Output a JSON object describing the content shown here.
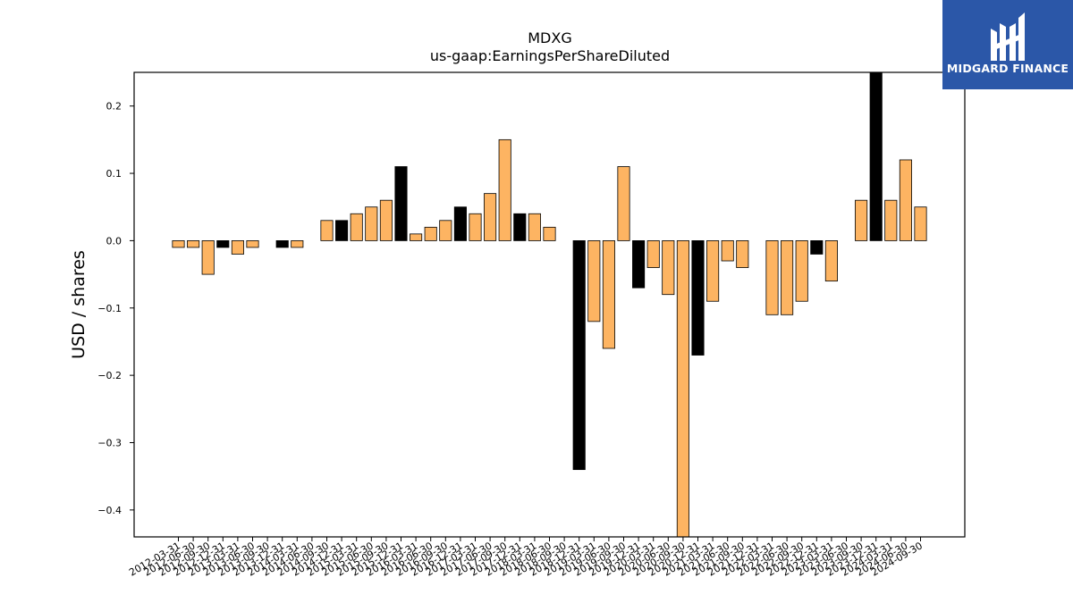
{
  "brand": {
    "name": "MIDGARD FINANCE"
  },
  "chart_data": {
    "type": "bar",
    "title": "MDXG",
    "subtitle": "us-gaap:EarningsPerShareDiluted",
    "xlabel": "",
    "ylabel": "USD / shares",
    "ylim": [
      -0.44,
      0.25
    ],
    "yticks": [
      -0.4,
      -0.3,
      -0.2,
      -0.1,
      0.0,
      0.1,
      0.2
    ],
    "ytick_labels": [
      "−0.4",
      "−0.3",
      "−0.2",
      "−0.1",
      "0.0",
      "0.1",
      "0.2"
    ],
    "grid": false,
    "colors": {
      "quarter": "#fdb462",
      "annual": "#000000",
      "edge": "#000000"
    },
    "categories": [
      "2012-03-31",
      "2012-06-30",
      "2012-09-30",
      "2012-12-31",
      "2013-03-31",
      "2013-06-30",
      "2013-09-30",
      "2013-12-31",
      "2014-03-31",
      "2014-06-30",
      "2014-09-30",
      "2014-12-31",
      "2015-03-31",
      "2015-06-30",
      "2015-09-30",
      "2015-12-31",
      "2016-03-31",
      "2016-06-30",
      "2016-09-30",
      "2016-12-31",
      "2017-03-31",
      "2017-06-30",
      "2017-09-30",
      "2017-12-31",
      "2018-03-31",
      "2018-06-30",
      "2018-09-30",
      "2018-12-31",
      "2019-03-31",
      "2019-06-30",
      "2019-09-30",
      "2019-12-31",
      "2020-03-31",
      "2020-06-30",
      "2020-09-30",
      "2020-12-31",
      "2021-03-31",
      "2021-06-30",
      "2021-09-30",
      "2021-12-31",
      "2022-03-31",
      "2022-06-30",
      "2022-09-30",
      "2022-12-31",
      "2023-03-31",
      "2023-06-30",
      "2023-09-30",
      "2023-12-31",
      "2024-03-31",
      "2024-06-30",
      "2024-09-30"
    ],
    "values": [
      -0.01,
      -0.01,
      -0.05,
      -0.01,
      -0.02,
      -0.01,
      0.0,
      -0.01,
      -0.01,
      0.0,
      0.03,
      0.03,
      0.04,
      0.05,
      0.06,
      0.11,
      0.01,
      0.02,
      0.03,
      0.05,
      0.04,
      0.07,
      0.15,
      0.04,
      0.04,
      0.02,
      0.0,
      -0.34,
      -0.12,
      -0.16,
      0.11,
      -0.07,
      -0.04,
      -0.08,
      -0.44,
      -0.17,
      -0.09,
      -0.03,
      -0.04,
      0.0,
      -0.11,
      -0.11,
      -0.09,
      -0.02,
      -0.06,
      0.0,
      0.06,
      0.25,
      0.06,
      0.12,
      0.05
    ],
    "annual": [
      false,
      false,
      false,
      true,
      false,
      false,
      false,
      true,
      false,
      false,
      false,
      true,
      false,
      false,
      false,
      true,
      false,
      false,
      false,
      true,
      false,
      false,
      false,
      true,
      false,
      false,
      false,
      true,
      false,
      false,
      false,
      true,
      false,
      false,
      false,
      true,
      false,
      false,
      false,
      true,
      false,
      false,
      false,
      true,
      false,
      false,
      false,
      true,
      false,
      false,
      false
    ]
  }
}
